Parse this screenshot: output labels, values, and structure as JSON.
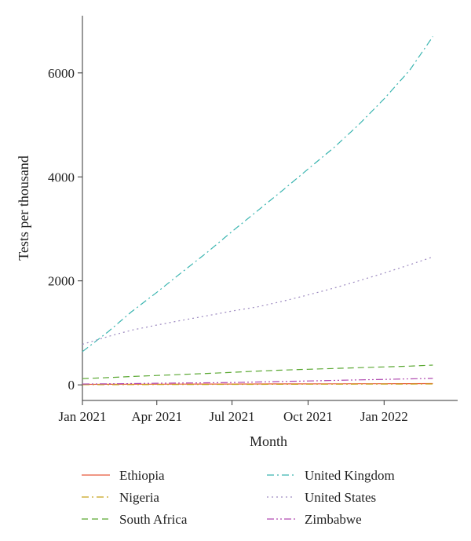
{
  "chart_data": {
    "type": "line",
    "xlabel": "Month",
    "ylabel": "Tests per thousand",
    "xlim": [
      "2021-01-01",
      "2022-03-31"
    ],
    "ylim": [
      -300,
      7100
    ],
    "x_ticks": [
      {
        "date": "2021-01-01",
        "label": "Jan 2021"
      },
      {
        "date": "2021-04-01",
        "label": "Apr 2021"
      },
      {
        "date": "2021-07-01",
        "label": "Jul 2021"
      },
      {
        "date": "2021-10-01",
        "label": "Oct 2021"
      },
      {
        "date": "2022-01-01",
        "label": "Jan 2022"
      }
    ],
    "y_ticks": [
      {
        "value": 0,
        "label": "0"
      },
      {
        "value": 2000,
        "label": "2000"
      },
      {
        "value": 4000,
        "label": "4000"
      },
      {
        "value": 6000,
        "label": "6000"
      }
    ],
    "grid": false,
    "legend_position": "bottom",
    "x": [
      "2021-01-01",
      "2021-02-01",
      "2021-03-01",
      "2021-04-01",
      "2021-05-01",
      "2021-06-01",
      "2021-07-01",
      "2021-08-01",
      "2021-09-01",
      "2021-10-01",
      "2021-11-01",
      "2021-12-01",
      "2022-01-01",
      "2022-02-01",
      "2022-03-01"
    ],
    "series": [
      {
        "name": "Ethiopia",
        "color": "#e8593a",
        "dash": "solid",
        "values": [
          10,
          11,
          12,
          13,
          14,
          15,
          16,
          17,
          18,
          19,
          20,
          21,
          22,
          23,
          24
        ]
      },
      {
        "name": "Nigeria",
        "color": "#c7a21a",
        "dash": "dashdot",
        "values": [
          3,
          4,
          5,
          6,
          7,
          8,
          9,
          10,
          11,
          12,
          13,
          14,
          15,
          16,
          17
        ]
      },
      {
        "name": "South Africa",
        "color": "#5aa832",
        "dash": "dashed",
        "values": [
          120,
          140,
          160,
          180,
          200,
          220,
          240,
          265,
          285,
          300,
          315,
          330,
          345,
          360,
          380
        ]
      },
      {
        "name": "United Kingdom",
        "color": "#3ab5b0",
        "dash": "dashdot",
        "values": [
          640,
          1020,
          1400,
          1780,
          2160,
          2550,
          2950,
          3350,
          3750,
          4150,
          4560,
          5000,
          5500,
          6050,
          6700
        ]
      },
      {
        "name": "United States",
        "color": "#9d8ac0",
        "dash": "dotted",
        "values": [
          780,
          930,
          1050,
          1150,
          1240,
          1330,
          1420,
          1500,
          1610,
          1730,
          1860,
          2000,
          2150,
          2310,
          2460
        ]
      },
      {
        "name": "Zimbabwe",
        "color": "#b04ab0",
        "dash": "dashdotdot",
        "values": [
          15,
          20,
          25,
          30,
          35,
          40,
          45,
          55,
          65,
          75,
          85,
          95,
          105,
          115,
          125
        ]
      }
    ]
  }
}
